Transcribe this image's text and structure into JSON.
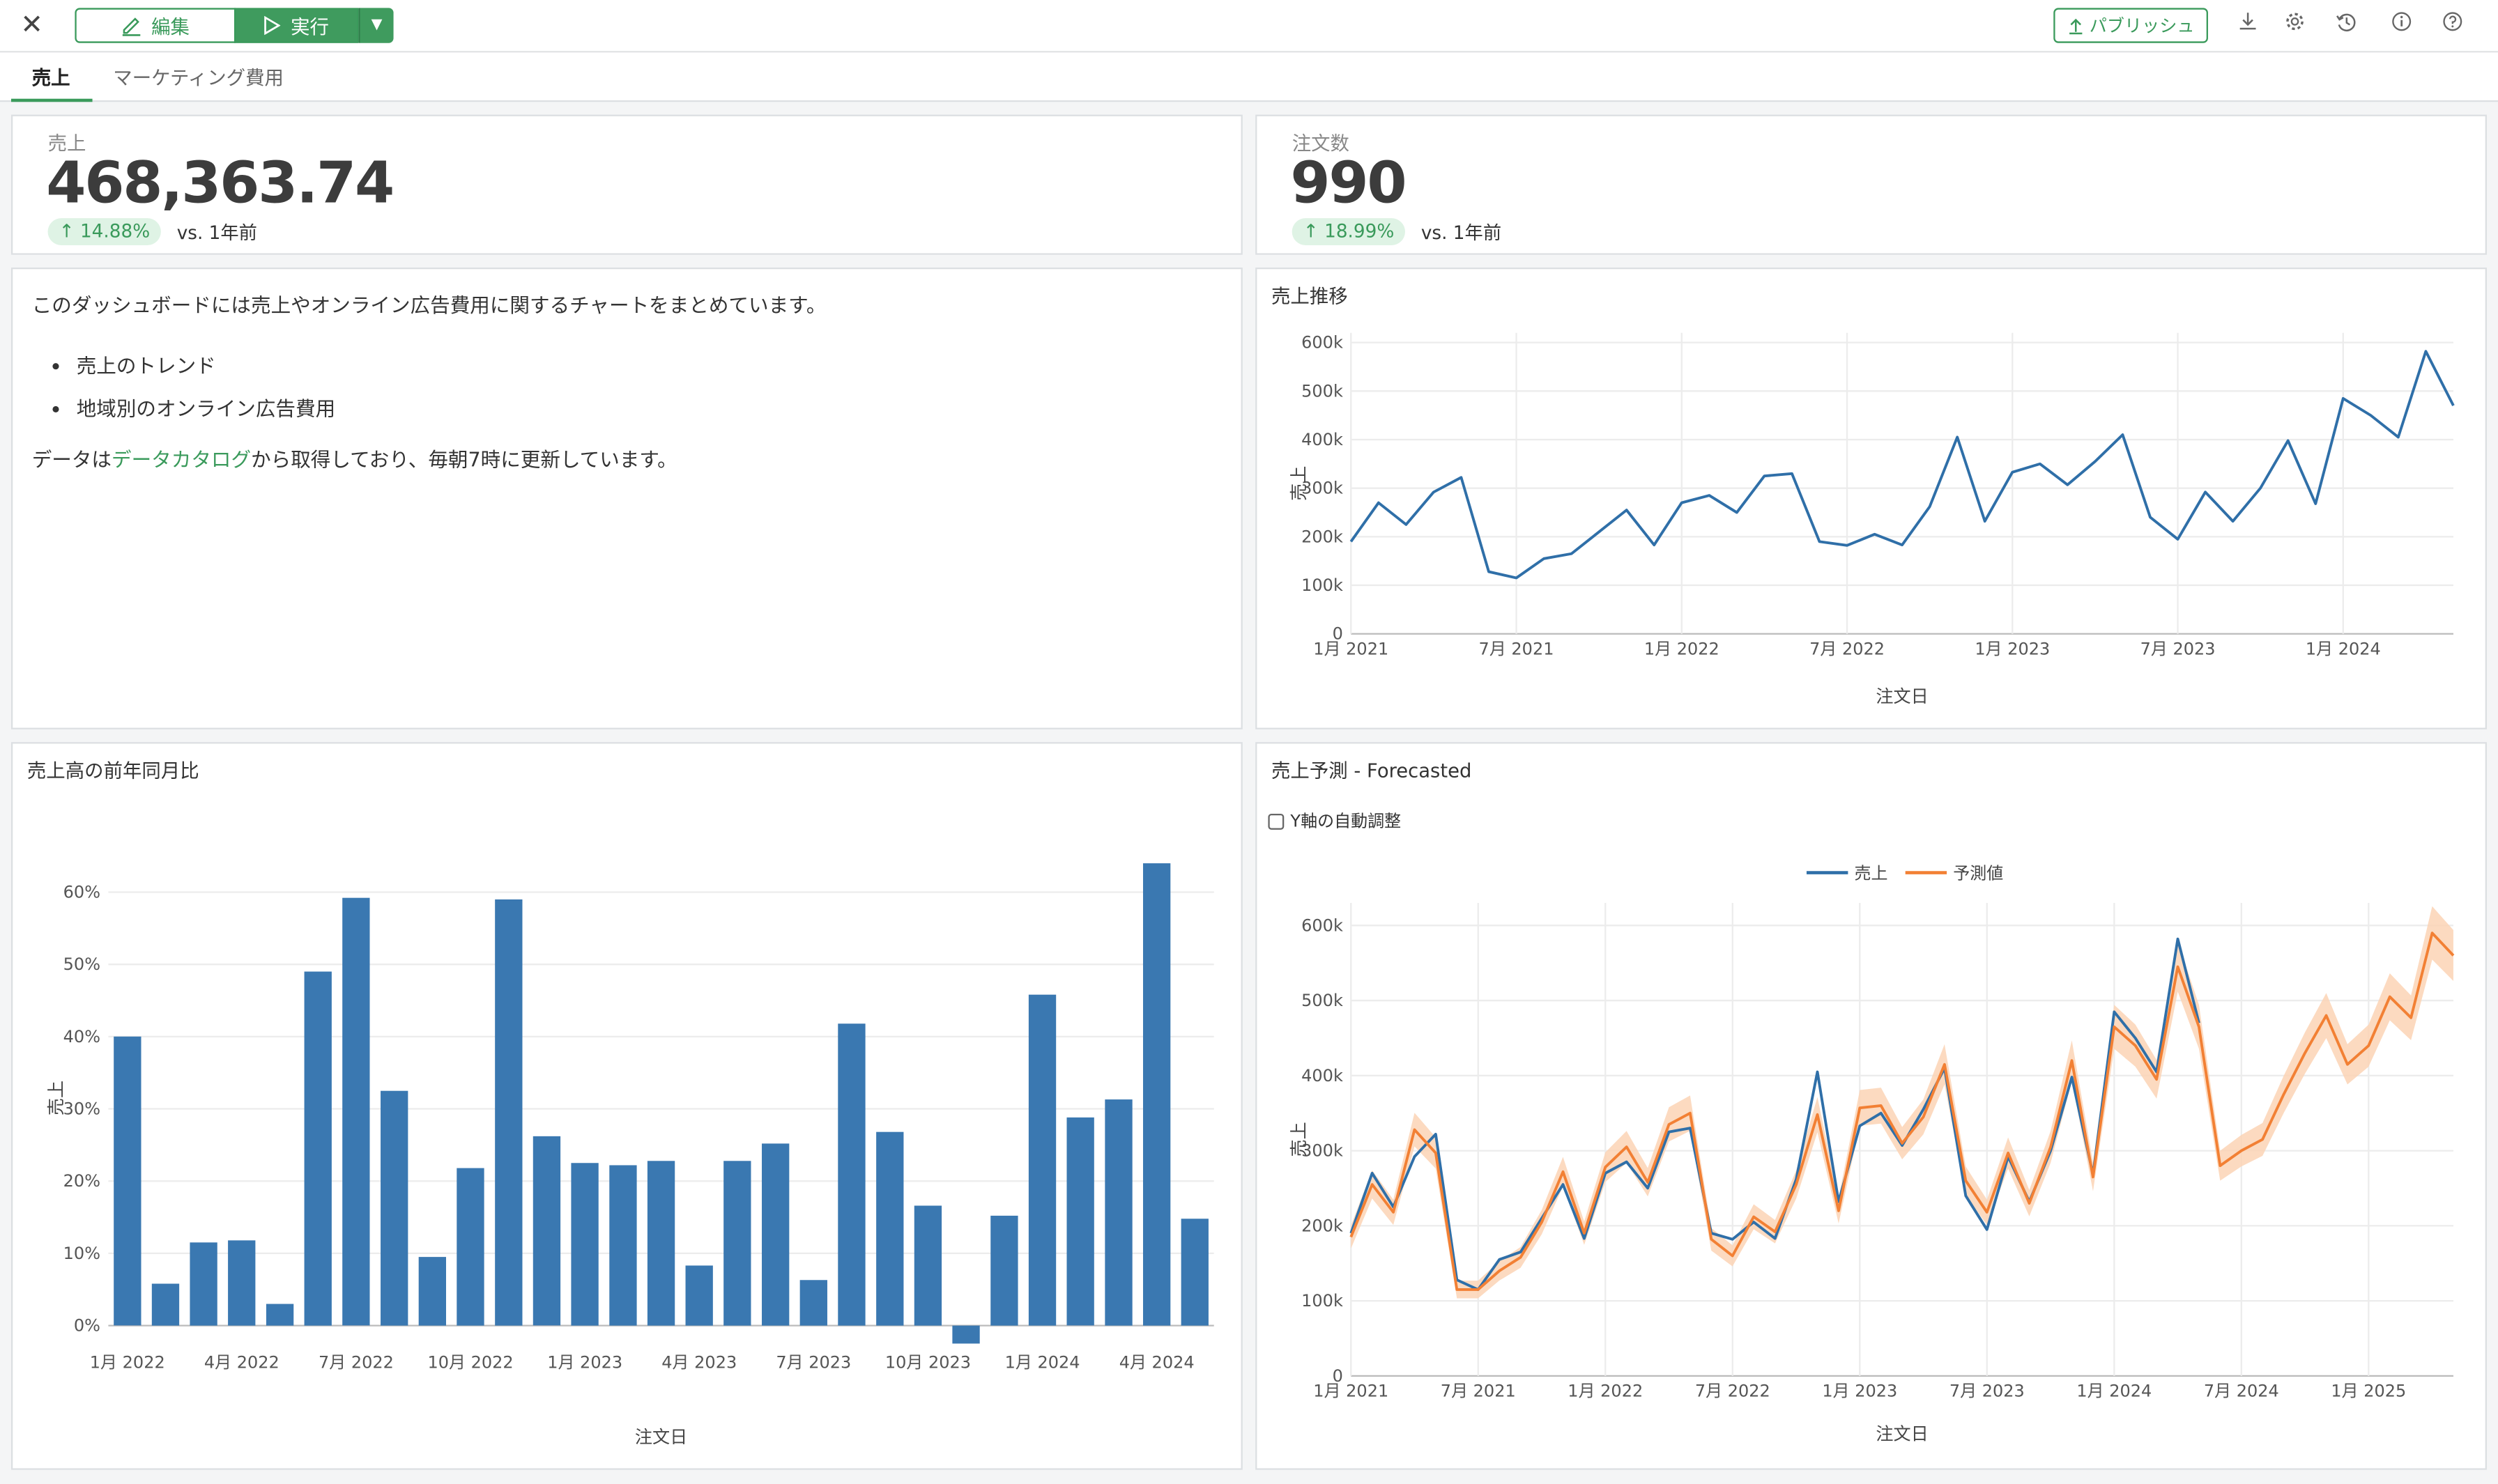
{
  "toolbar": {
    "edit_label": "編集",
    "run_label": "実行",
    "publish_label": "パブリッシュ"
  },
  "tabs": [
    {
      "label": "売上",
      "active": true
    },
    {
      "label": "マーケティング費用",
      "active": false
    }
  ],
  "kpis": [
    {
      "label": "売上",
      "value": "468,363.74",
      "change": "14.88%",
      "compare": "vs. 1年前"
    },
    {
      "label": "注文数",
      "value": "990",
      "change": "18.99%",
      "compare": "vs. 1年前"
    }
  ],
  "description": {
    "intro": "このダッシュボードには売上やオンライン広告費用に関するチャートをまとめています。",
    "bullets": [
      "売上のトレンド",
      "地域別のオンライン広告費用"
    ],
    "source_prefix": "データは",
    "source_link": "データカタログ",
    "source_suffix": "から取得しており、毎朝7時に更新しています。"
  },
  "colors": {
    "accent": "#3a9a5b",
    "bar": "#3a78b1",
    "line": "#2f6fa8",
    "forecast": "#f28034",
    "band": "#fbd3b5"
  },
  "chart_data": [
    {
      "id": "trend",
      "title": "売上推移",
      "type": "line",
      "xlabel": "注文日",
      "ylabel": "売上",
      "ylim": [
        0,
        620000
      ],
      "yticks": [
        "0",
        "100k",
        "200k",
        "300k",
        "400k",
        "500k",
        "600k"
      ],
      "xticks": [
        "1月 2021",
        "7月 2021",
        "1月 2022",
        "7月 2022",
        "1月 2023",
        "7月 2023",
        "1月 2024"
      ],
      "x_start": "2021-01",
      "values": [
        190000,
        270000,
        225000,
        292000,
        322000,
        128000,
        115000,
        155000,
        165000,
        210000,
        255000,
        183000,
        270000,
        285000,
        250000,
        325000,
        330000,
        190000,
        182000,
        205000,
        183000,
        262000,
        405000,
        232000,
        333000,
        350000,
        307000,
        355000,
        410000,
        240000,
        195000,
        292000,
        232000,
        300000,
        398000,
        268000,
        485000,
        450000,
        405000,
        582000,
        470000
      ]
    },
    {
      "id": "yoy",
      "title": "売上高の前年同月比",
      "type": "bar",
      "xlabel": "注文日",
      "ylabel": "売上",
      "ylim": [
        -0.03,
        0.66
      ],
      "yticks": [
        "0%",
        "10%",
        "20%",
        "30%",
        "40%",
        "50%",
        "60%"
      ],
      "xticks": [
        "1月 2022",
        "4月 2022",
        "7月 2022",
        "10月 2022",
        "1月 2023",
        "4月 2023",
        "7月 2023",
        "10月 2023",
        "1月 2024",
        "4月 2024"
      ],
      "x_start": "2022-01",
      "values": [
        0.4,
        0.058,
        0.115,
        0.118,
        0.03,
        0.49,
        0.592,
        0.325,
        0.095,
        0.218,
        0.59,
        0.262,
        0.225,
        0.222,
        0.228,
        0.083,
        0.228,
        0.252,
        0.063,
        0.418,
        0.268,
        0.166,
        -0.025,
        0.152,
        0.458,
        0.288,
        0.313,
        0.64,
        0.148
      ]
    },
    {
      "id": "forecast",
      "title": "売上予測 - Forecasted",
      "type": "line",
      "checkbox_label": "Y軸の自動調整",
      "xlabel": "注文日",
      "ylabel": "売上",
      "ylim": [
        0,
        630000
      ],
      "yticks": [
        "0",
        "100k",
        "200k",
        "300k",
        "400k",
        "500k",
        "600k"
      ],
      "xticks": [
        "1月 2021",
        "7月 2021",
        "1月 2022",
        "7月 2022",
        "1月 2023",
        "7月 2023",
        "1月 2024",
        "7月 2024",
        "1月 2025"
      ],
      "x_start": "2021-01",
      "series": [
        {
          "name": "売上",
          "color": "#2f6fa8",
          "values": [
            190000,
            270000,
            225000,
            292000,
            322000,
            128000,
            115000,
            155000,
            165000,
            210000,
            255000,
            183000,
            270000,
            285000,
            250000,
            325000,
            330000,
            190000,
            182000,
            205000,
            183000,
            262000,
            405000,
            232000,
            333000,
            350000,
            307000,
            355000,
            410000,
            240000,
            195000,
            292000,
            232000,
            300000,
            398000,
            268000,
            485000,
            450000,
            405000,
            582000,
            470000
          ]
        },
        {
          "name": "予測値",
          "color": "#f28034",
          "values": [
            185000,
            255000,
            218000,
            328000,
            297000,
            115000,
            115000,
            140000,
            158000,
            205000,
            272000,
            190000,
            278000,
            305000,
            258000,
            335000,
            350000,
            182000,
            160000,
            212000,
            192000,
            255000,
            348000,
            220000,
            357000,
            360000,
            310000,
            345000,
            415000,
            260000,
            218000,
            297000,
            230000,
            305000,
            420000,
            265000,
            465000,
            440000,
            395000,
            545000,
            465000,
            280000,
            300000,
            315000,
            375000,
            430000,
            480000,
            415000,
            440000,
            505000,
            477000,
            590000,
            560000
          ]
        }
      ]
    }
  ]
}
